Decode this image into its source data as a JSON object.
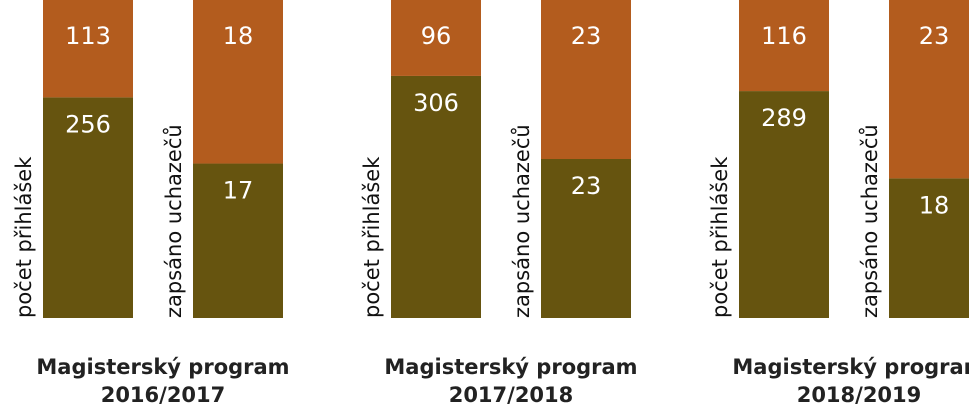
{
  "chart_data": [
    {
      "type": "bar",
      "stacked": "percent",
      "title": "Magisterský program",
      "subtitle": "2016/2017",
      "categories": [
        "počet přihlášek",
        "zapsáno uchazečů"
      ],
      "series": [
        {
          "color": "#66540f",
          "values": [
            256,
            17
          ]
        },
        {
          "color": "#b35c1e",
          "values": [
            113,
            18
          ]
        }
      ]
    },
    {
      "type": "bar",
      "stacked": "percent",
      "title": "Magisterský program",
      "subtitle": "2017/2018",
      "categories": [
        "počet přihlášek",
        "zapsáno uchazečů"
      ],
      "series": [
        {
          "color": "#66540f",
          "values": [
            306,
            23
          ]
        },
        {
          "color": "#b35c1e",
          "values": [
            96,
            23
          ]
        }
      ]
    },
    {
      "type": "bar",
      "stacked": "percent",
      "title": "Magisterský program",
      "subtitle": "2018/2019",
      "categories": [
        "počet přihlášek",
        "zapsáno uchazečů"
      ],
      "series": [
        {
          "color": "#66540f",
          "values": [
            289,
            18
          ]
        },
        {
          "color": "#b35c1e",
          "values": [
            116,
            23
          ]
        }
      ]
    }
  ]
}
